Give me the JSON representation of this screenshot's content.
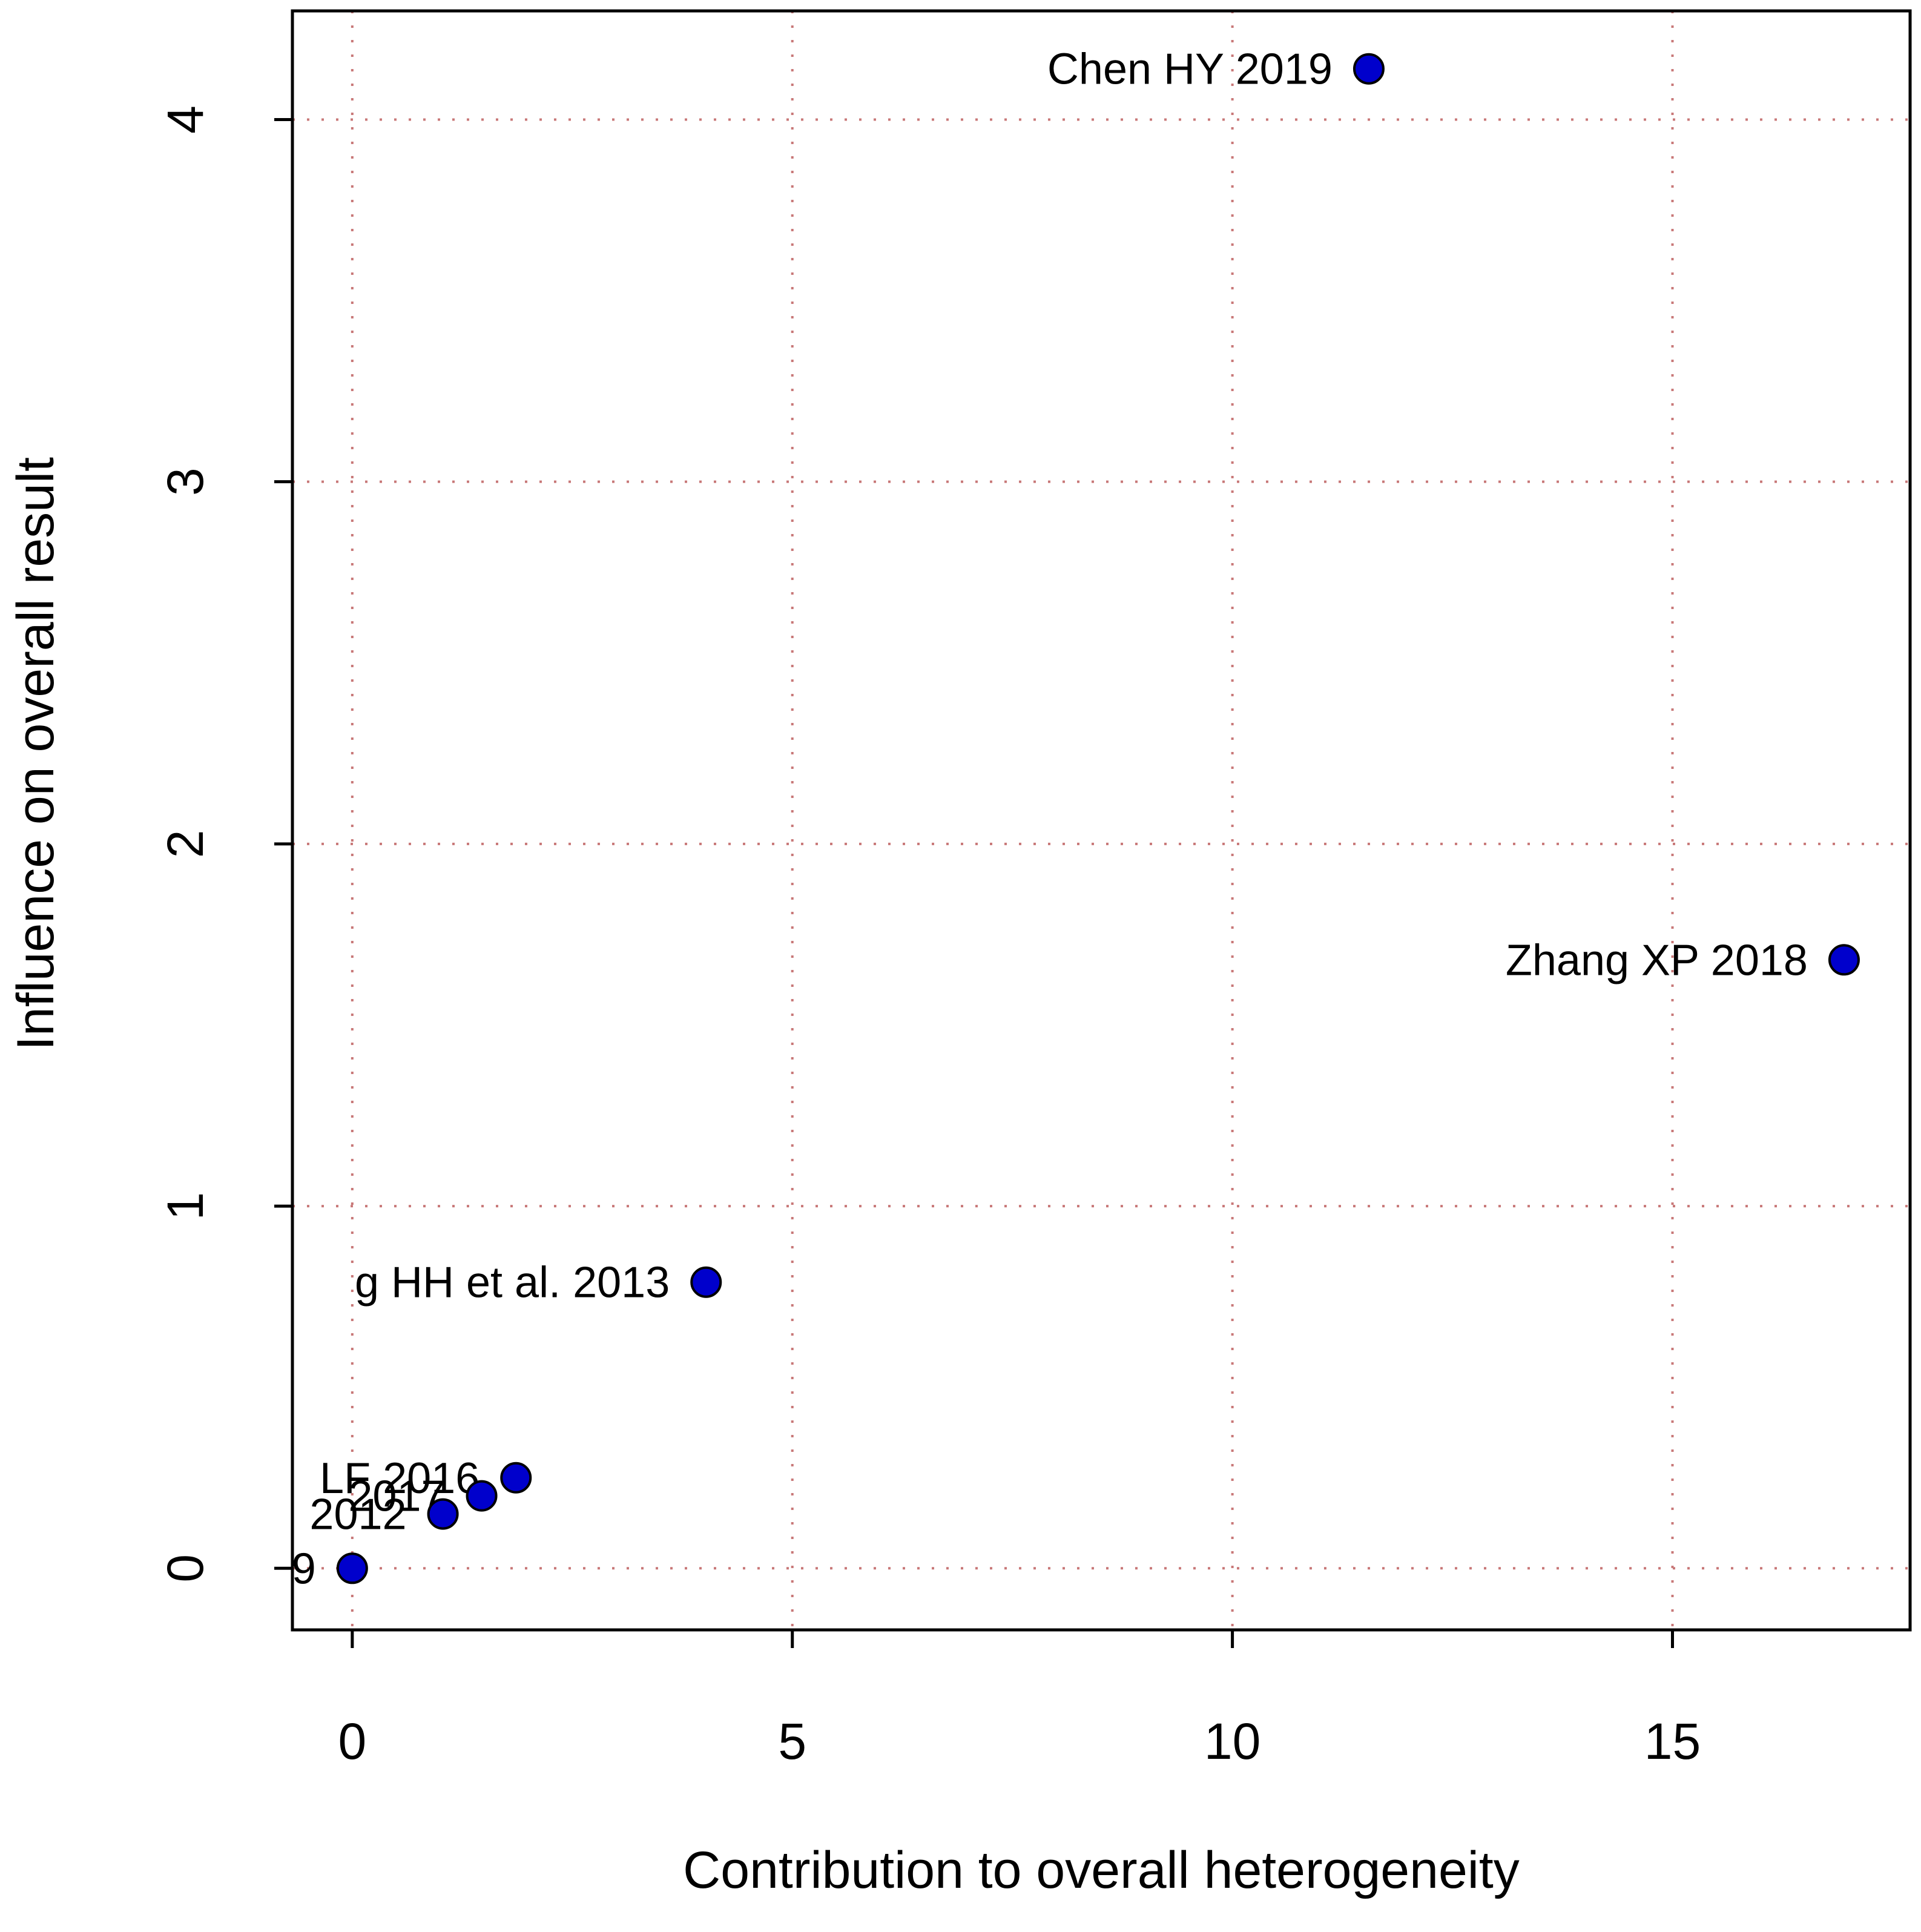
{
  "chart_data": {
    "type": "scatter",
    "title": "",
    "xlabel": "Contribution to overall heterogeneity",
    "ylabel": "Influence on overall result",
    "xlim": [
      -0.68,
      17.7
    ],
    "ylim": [
      -0.17,
      4.3
    ],
    "x_ticks": [
      0,
      5,
      10,
      15
    ],
    "y_ticks": [
      0,
      1,
      2,
      3,
      4
    ],
    "x_tick_labels": [
      "0",
      "5",
      "10",
      "15"
    ],
    "y_tick_labels": [
      "0",
      "1",
      "2",
      "3",
      "4"
    ],
    "grid": "dotted",
    "grid_color": "#c87878",
    "point_color": "#0000cc",
    "point_edge_color": "#000000",
    "points": [
      {
        "label": "Chen HY 2019",
        "x": 11.55,
        "y": 4.14
      },
      {
        "label": "Zhang XP 2018",
        "x": 16.95,
        "y": 1.68
      },
      {
        "label": "g HH et al. 2013",
        "x": 4.02,
        "y": 0.79
      },
      {
        "label": "LF 2016",
        "x": 1.86,
        "y": 0.25
      },
      {
        "label": "2017",
        "x": 1.47,
        "y": 0.2
      },
      {
        "label": "2012",
        "x": 1.03,
        "y": 0.15
      },
      {
        "label": "9",
        "x": 0.0,
        "y": 0.0
      }
    ]
  }
}
